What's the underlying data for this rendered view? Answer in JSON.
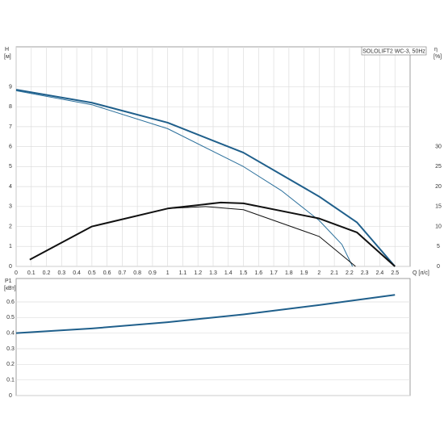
{
  "chart_data": [
    {
      "type": "line",
      "title": "SOLOLIFT2 WC-3, 50Hz",
      "ylabel": "H",
      "yunit": "[м]",
      "y2label": "η",
      "y2unit": "[%]",
      "xlabel": "Q [л/с]",
      "xlim": [
        0,
        2.6
      ],
      "xticks": [
        0,
        0.1,
        0.2,
        0.3,
        0.4,
        0.5,
        0.6,
        0.7,
        0.8,
        0.9,
        1.0,
        1.1,
        1.2,
        1.3,
        1.4,
        1.5,
        1.6,
        1.7,
        1.8,
        1.9,
        2.0,
        2.1,
        2.2,
        2.3,
        2.4,
        2.5
      ],
      "ylim": [
        0,
        11
      ],
      "yticks": [
        0,
        1,
        2,
        3,
        4,
        5,
        6,
        7,
        8,
        9
      ],
      "y2lim": [
        0,
        55
      ],
      "y2ticks": [
        0,
        5,
        10,
        15,
        20,
        25,
        30
      ],
      "grid": true,
      "series": [
        {
          "color": "#1f5f8b",
          "width": 2,
          "x": [
            0,
            0.5,
            1.0,
            1.5,
            2.0,
            2.25,
            2.5
          ],
          "values": [
            8.85,
            8.2,
            7.2,
            5.7,
            3.5,
            2.2,
            0
          ]
        },
        {
          "color": "#2a6f9b",
          "width": 1,
          "x": [
            0,
            0.5,
            1.0,
            1.5,
            1.75,
            2.0,
            2.15,
            2.22
          ],
          "values": [
            8.8,
            8.1,
            6.9,
            5.0,
            3.8,
            2.3,
            1.1,
            0
          ]
        },
        {
          "color": "#111111",
          "width": 2,
          "axis": "y2",
          "x": [
            0.09,
            0.5,
            1.0,
            1.35,
            1.5,
            2.0,
            2.25,
            2.5
          ],
          "values": [
            1.7,
            10,
            14.5,
            16,
            15.8,
            12,
            8.5,
            0
          ]
        },
        {
          "color": "#111111",
          "width": 1,
          "axis": "y2",
          "x": [
            0.09,
            0.5,
            1.0,
            1.25,
            1.5,
            2.0,
            2.24
          ],
          "values": [
            1.7,
            10,
            14.5,
            15,
            14.2,
            7.5,
            0
          ]
        }
      ]
    },
    {
      "type": "line",
      "ylabel": "P1",
      "yunit": "[кВт]",
      "xlim": [
        0,
        2.6
      ],
      "ylim": [
        0,
        0.75
      ],
      "yticks": [
        0,
        0.1,
        0.2,
        0.3,
        0.4,
        0.5,
        0.6
      ],
      "grid": true,
      "series": [
        {
          "color": "#1f5f8b",
          "width": 2,
          "x": [
            0,
            0.5,
            1.0,
            1.5,
            2.0,
            2.5
          ],
          "values": [
            0.4,
            0.43,
            0.47,
            0.52,
            0.58,
            0.645
          ]
        }
      ]
    }
  ]
}
